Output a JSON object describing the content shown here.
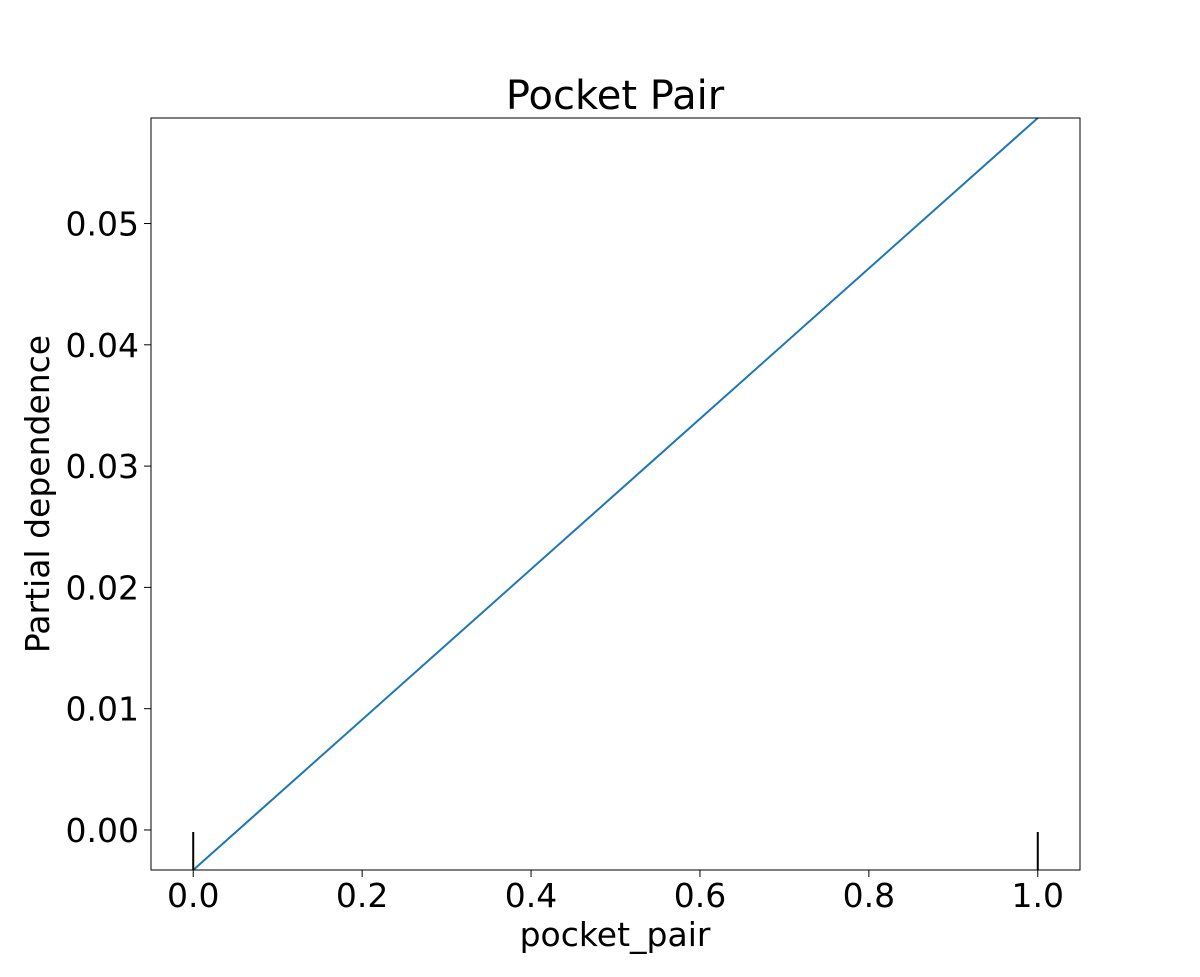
{
  "chart_data": {
    "type": "line",
    "title": "Pocket Pair",
    "xlabel": "pocket_pair",
    "ylabel": "Partial dependence",
    "xlim": [
      -0.05,
      1.05
    ],
    "ylim": [
      -0.0033,
      0.0587
    ],
    "x_ticks": [
      0.0,
      0.2,
      0.4,
      0.6,
      0.8,
      1.0
    ],
    "x_tick_labels": [
      "0.0",
      "0.2",
      "0.4",
      "0.6",
      "0.8",
      "1.0"
    ],
    "y_ticks": [
      0.0,
      0.01,
      0.02,
      0.03,
      0.04,
      0.05
    ],
    "y_tick_labels": [
      "0.00",
      "0.01",
      "0.02",
      "0.03",
      "0.04",
      "0.05"
    ],
    "grid": false,
    "series": [
      {
        "color": "#1f77b4",
        "x": [
          0.0,
          1.0
        ],
        "y": [
          -0.0033,
          0.0587
        ]
      }
    ],
    "rug": {
      "x": [
        0.0,
        1.0
      ],
      "color": "#000000"
    }
  }
}
